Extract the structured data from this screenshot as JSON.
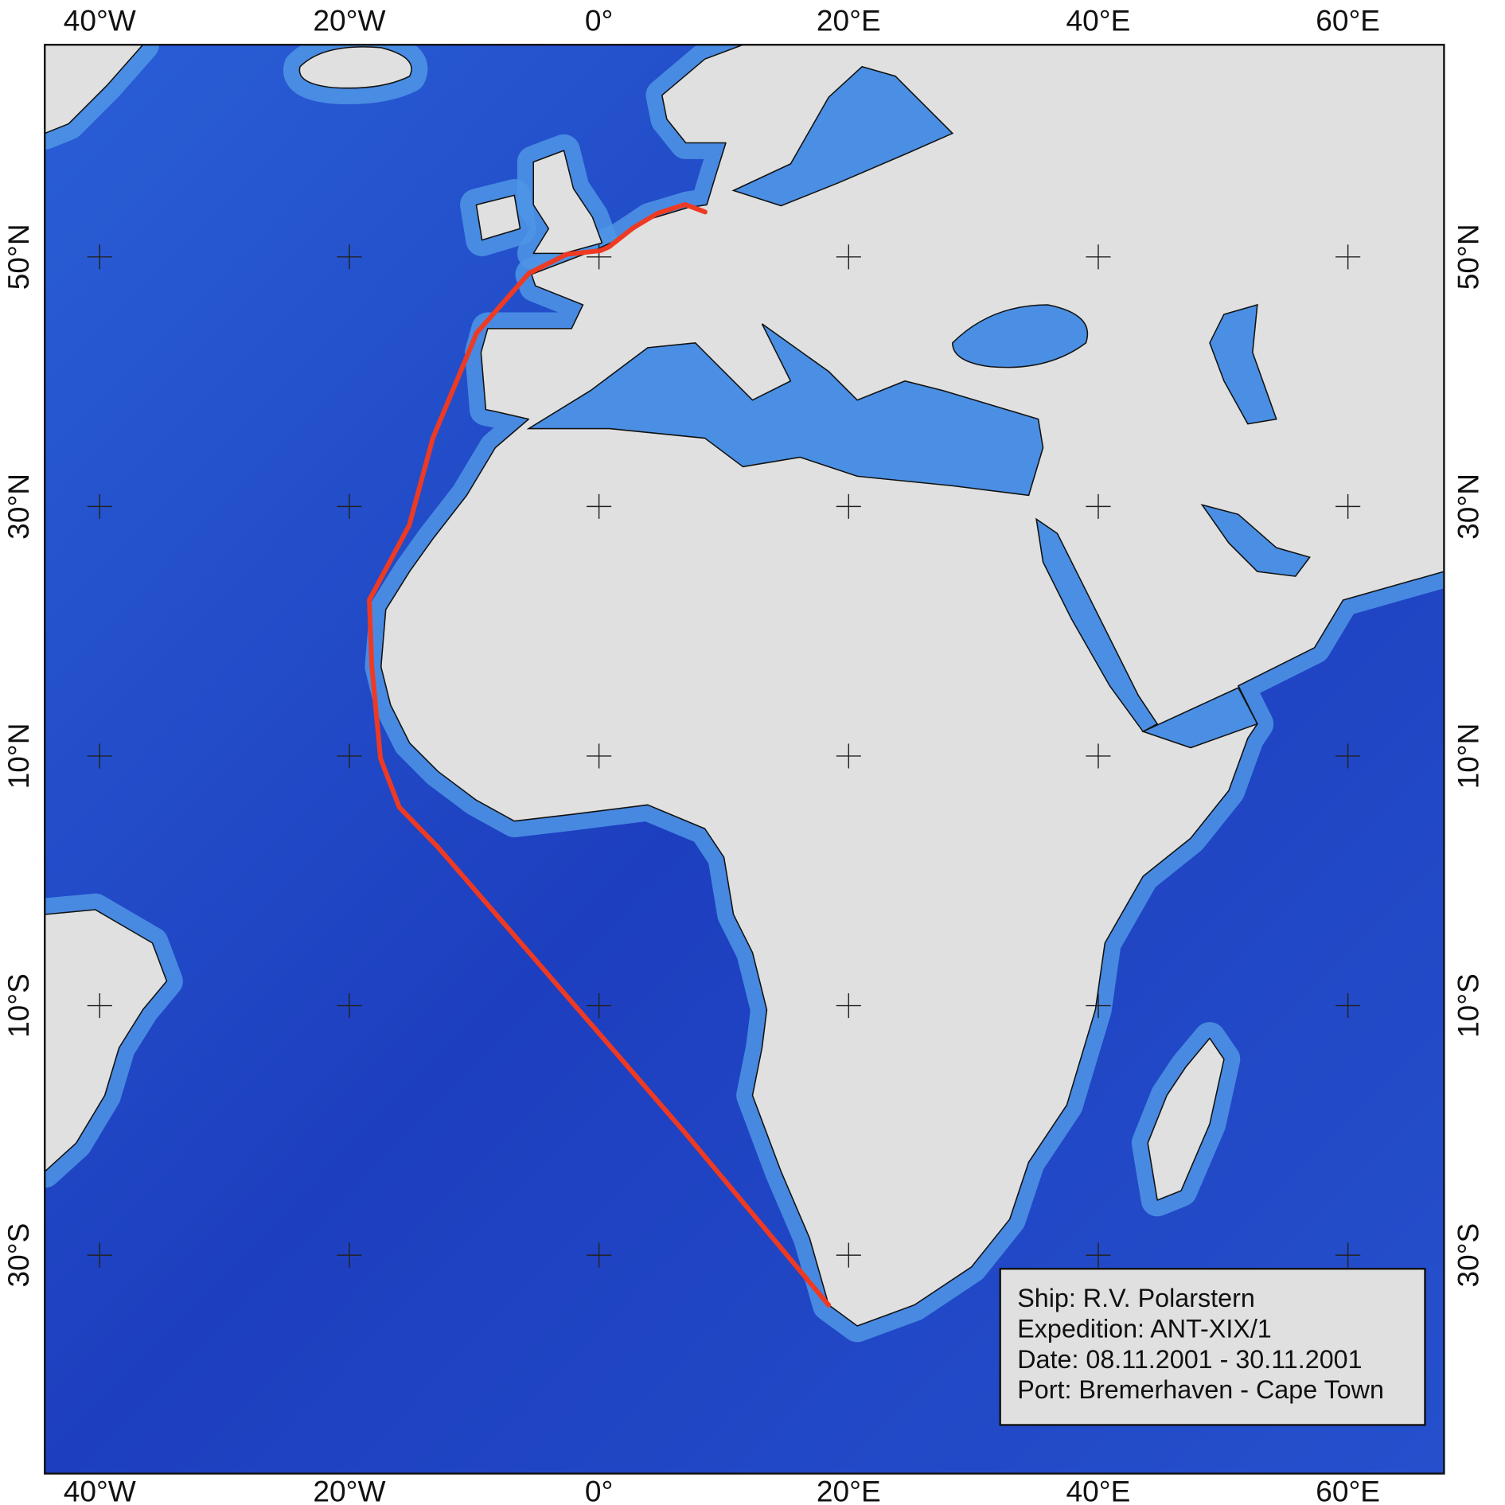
{
  "chart_data": {
    "type": "map",
    "xlim": [
      -44.4,
      67.7
    ],
    "ylim": [
      -47.5,
      67.0
    ],
    "xticks": [
      {
        "value": -40,
        "label": "40°W"
      },
      {
        "value": -20,
        "label": "20°W"
      },
      {
        "value": 0,
        "label": "0°"
      },
      {
        "value": 20,
        "label": "20°E"
      },
      {
        "value": 40,
        "label": "40°E"
      },
      {
        "value": 60,
        "label": "60°E"
      }
    ],
    "yticks": [
      {
        "value": 50,
        "label": "50°N"
      },
      {
        "value": 30,
        "label": "30°N"
      },
      {
        "value": 10,
        "label": "10°N"
      },
      {
        "value": -10,
        "label": "10°S"
      },
      {
        "value": -30,
        "label": "30°S"
      }
    ],
    "grid": true,
    "track": {
      "color": "#ee3a22",
      "lon": [
        8.5,
        6.9,
        4.7,
        2.7,
        0.8,
        0.1,
        -2.6,
        -5.6,
        -9.8,
        -13.3,
        -15.2,
        -18.4,
        -18.2,
        -17.5,
        -16.0,
        -12.9,
        6.9,
        18.4
      ],
      "lat": [
        53.6,
        54.2,
        53.5,
        52.3,
        50.8,
        50.5,
        50.2,
        48.7,
        43.9,
        35.5,
        28.5,
        22.5,
        17.2,
        9.8,
        5.9,
        2.7,
        -20.2,
        -34.0
      ]
    },
    "info": [
      "Ship: R.V. Polarstern",
      "Expedition: ANT-XIX/1",
      "Date: 08.11.2001 - 30.11.2001",
      "Port: Bremerhaven - Cape Town"
    ]
  }
}
